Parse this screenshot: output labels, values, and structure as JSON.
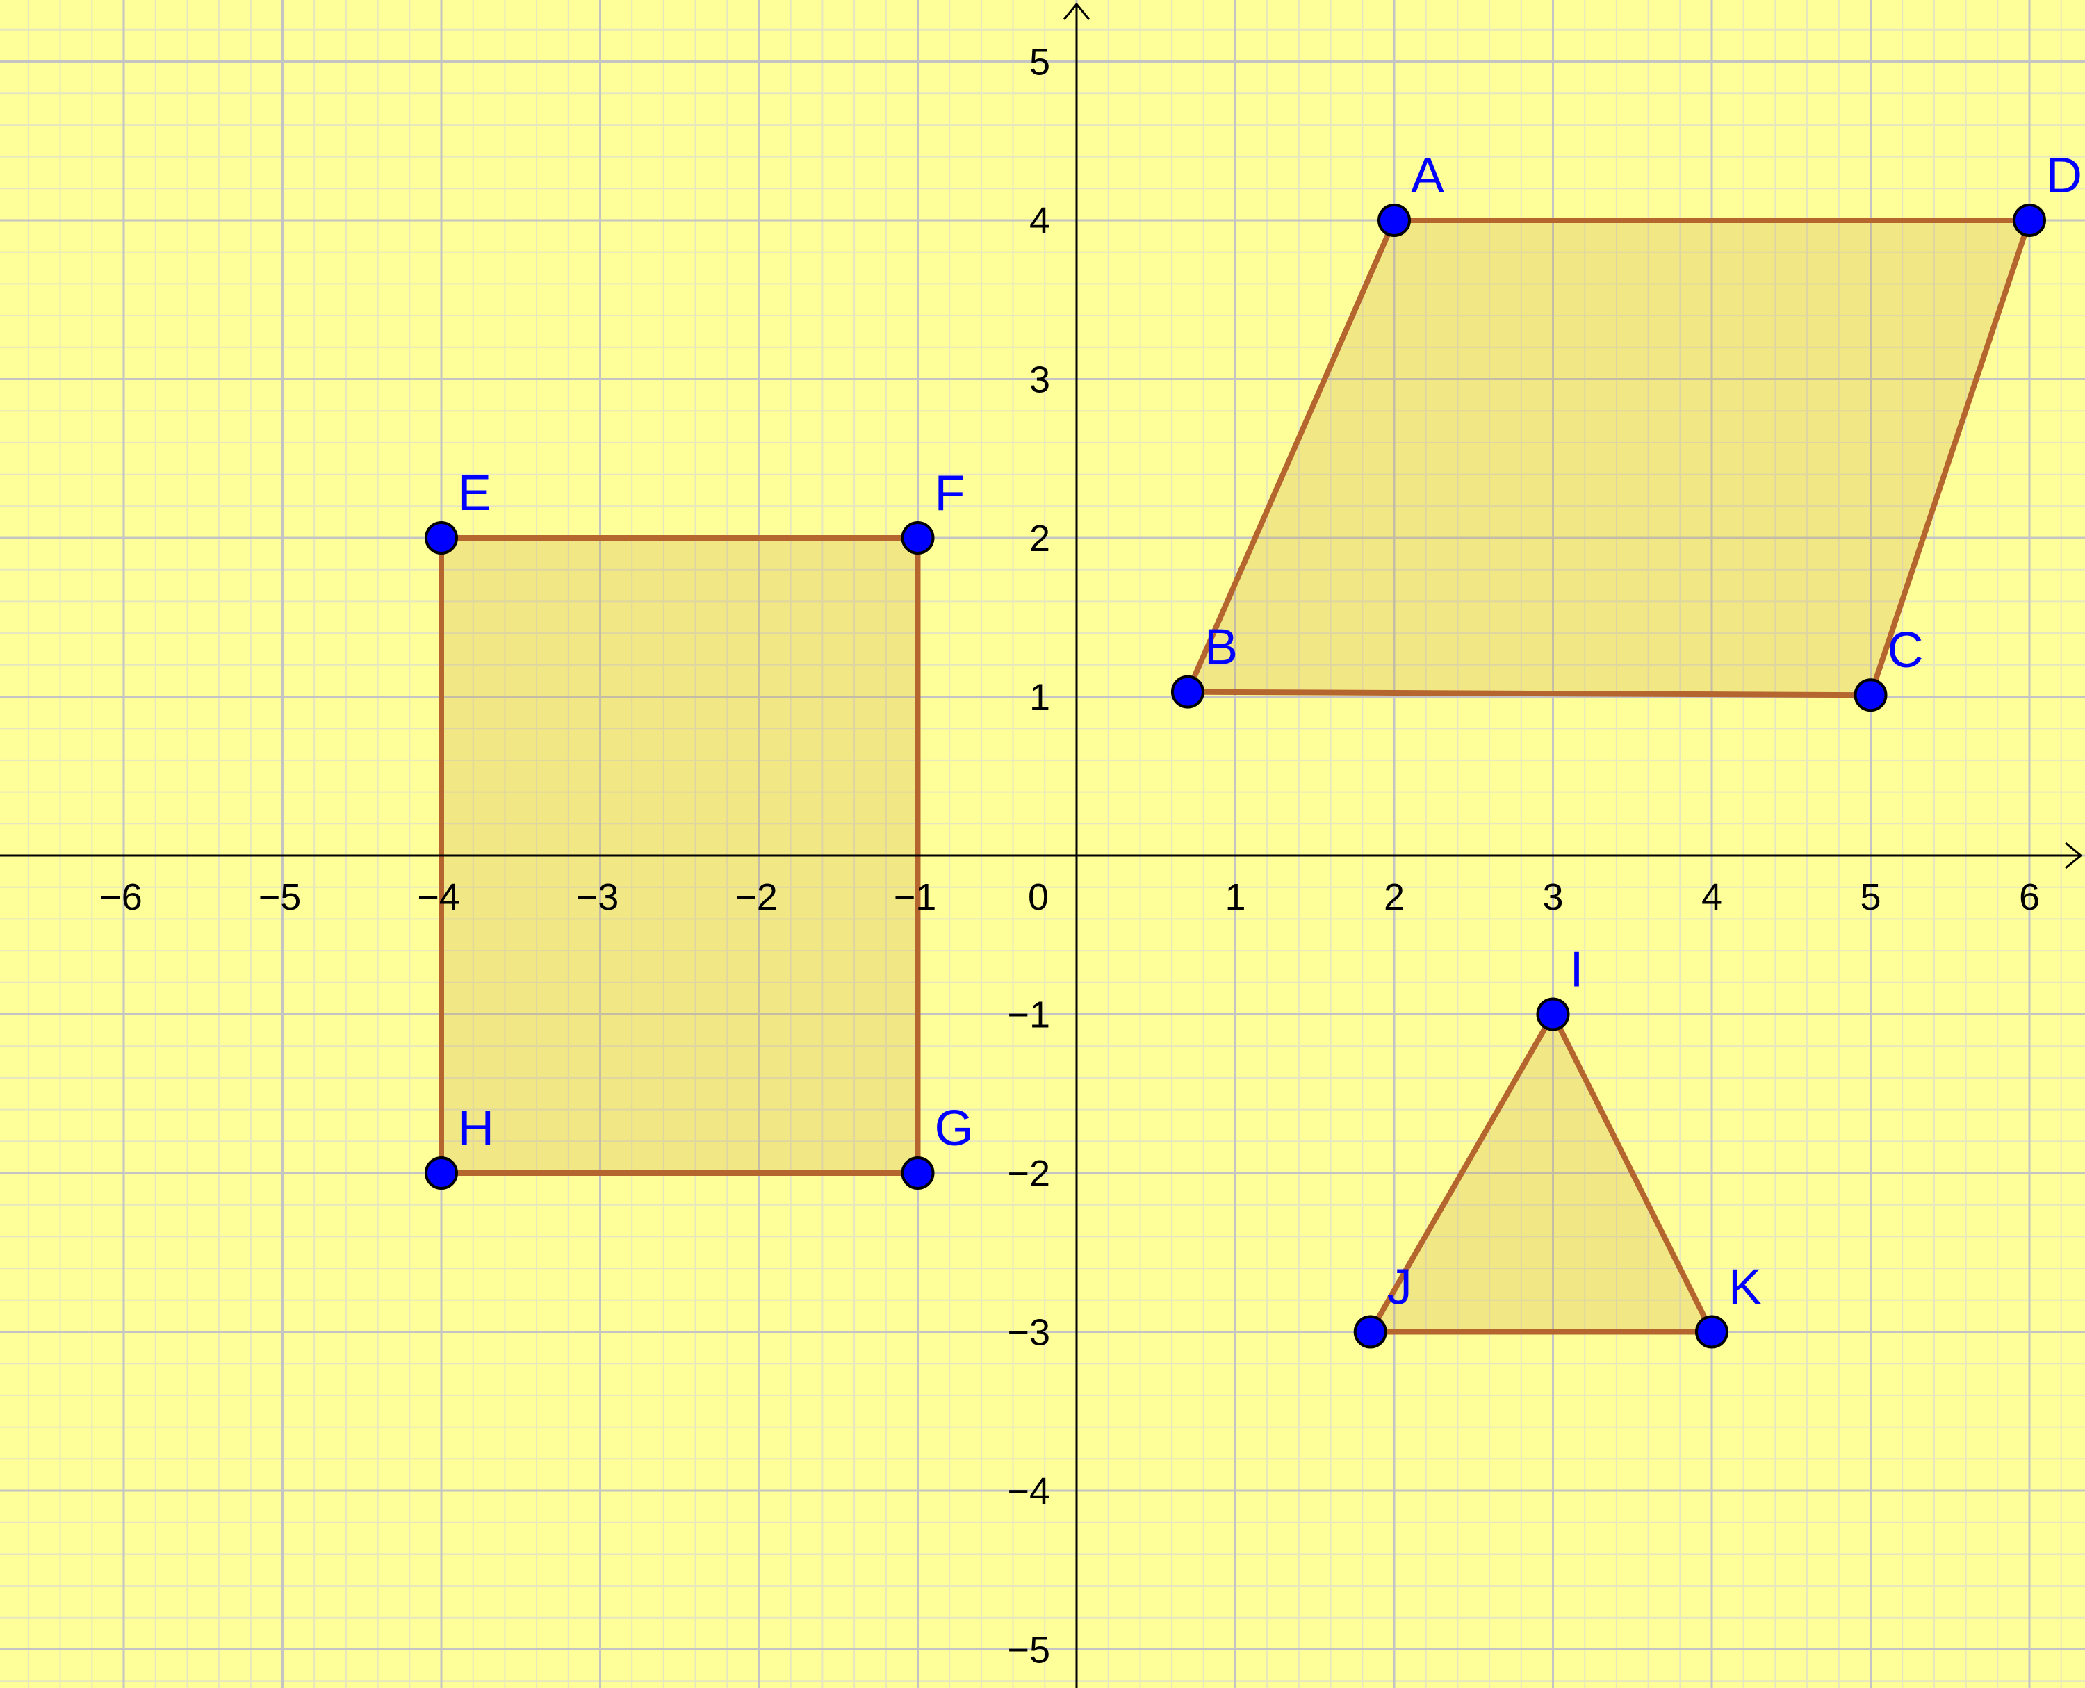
{
  "colors": {
    "background": "#ffff99",
    "grid_minor": "#e6e6c0",
    "grid_major": "#c4c4c4",
    "axis": "#000000",
    "polygon_fill": "#c8a24a",
    "polygon_stroke": "#b5652e",
    "point_fill": "#0000ff",
    "point_stroke": "#000000",
    "label_color": "#0000ff",
    "tick_color": "#000000"
  },
  "axes": {
    "x_range": [
      -6.75,
      6.3
    ],
    "y_range": [
      -5.25,
      5.4
    ],
    "x_ticks": [
      {
        "value": -6,
        "label": "−6"
      },
      {
        "value": -5,
        "label": "−5"
      },
      {
        "value": -4,
        "label": "−4"
      },
      {
        "value": -3,
        "label": "−3"
      },
      {
        "value": -2,
        "label": "−2"
      },
      {
        "value": -1,
        "label": "−1"
      },
      {
        "value": 1,
        "label": "1"
      },
      {
        "value": 2,
        "label": "2"
      },
      {
        "value": 3,
        "label": "3"
      },
      {
        "value": 4,
        "label": "4"
      },
      {
        "value": 5,
        "label": "5"
      },
      {
        "value": 6,
        "label": "6"
      }
    ],
    "y_ticks": [
      {
        "value": 5,
        "label": "5"
      },
      {
        "value": 4,
        "label": "4"
      },
      {
        "value": 3,
        "label": "3"
      },
      {
        "value": 2,
        "label": "2"
      },
      {
        "value": 1,
        "label": "1"
      },
      {
        "value": -1,
        "label": "−1"
      },
      {
        "value": -2,
        "label": "−2"
      },
      {
        "value": -3,
        "label": "−3"
      },
      {
        "value": -4,
        "label": "−4"
      },
      {
        "value": -5,
        "label": "−5"
      }
    ],
    "origin_label": "0",
    "minor_divisions": 5,
    "grid": true
  },
  "points": [
    {
      "id": "A",
      "label": "A",
      "x": 2,
      "y": 4
    },
    {
      "id": "B",
      "label": "B",
      "x": 0.7,
      "y": 1.03
    },
    {
      "id": "C",
      "label": "C",
      "x": 5,
      "y": 1.01
    },
    {
      "id": "D",
      "label": "D",
      "x": 6,
      "y": 4
    },
    {
      "id": "E",
      "label": "E",
      "x": -4,
      "y": 2
    },
    {
      "id": "F",
      "label": "F",
      "x": -1,
      "y": 2
    },
    {
      "id": "G",
      "label": "G",
      "x": -1,
      "y": -2
    },
    {
      "id": "H",
      "label": "H",
      "x": -4,
      "y": -2
    },
    {
      "id": "I",
      "label": "I",
      "x": 3,
      "y": -1
    },
    {
      "id": "J",
      "label": "J",
      "x": 1.85,
      "y": -3
    },
    {
      "id": "K",
      "label": "K",
      "x": 4,
      "y": -3
    }
  ],
  "polygons": [
    {
      "id": "ABCD",
      "vertices": [
        "A",
        "B",
        "C",
        "D"
      ]
    },
    {
      "id": "EFGH",
      "vertices": [
        "E",
        "F",
        "G",
        "H"
      ]
    },
    {
      "id": "IJK",
      "vertices": [
        "I",
        "J",
        "K"
      ]
    }
  ]
}
